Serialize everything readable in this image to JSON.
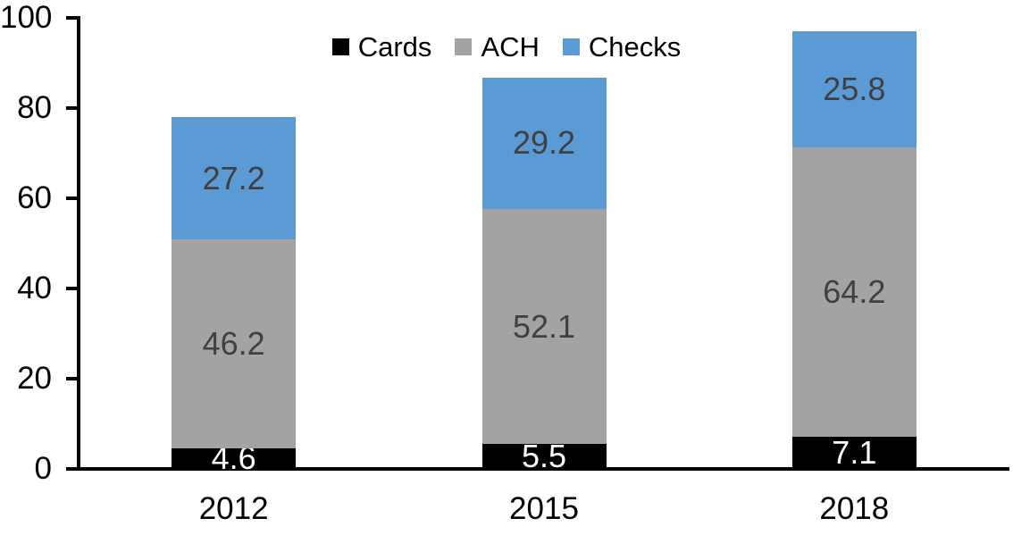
{
  "chart_data": {
    "type": "bar",
    "stacked": true,
    "title": "",
    "xlabel": "",
    "ylabel": "",
    "categories": [
      "2012",
      "2015",
      "2018"
    ],
    "series": [
      {
        "name": "Cards",
        "color": "#000000",
        "label_color": "#FFFFFF",
        "values": [
          4.6,
          5.5,
          7.1
        ]
      },
      {
        "name": "ACH",
        "color": "#A3A3A3",
        "label_color": "#404040",
        "values": [
          46.2,
          52.1,
          64.2
        ]
      },
      {
        "name": "Checks",
        "color": "#5B9BD5",
        "label_color": "#404040",
        "values": [
          27.2,
          29.2,
          25.8
        ]
      }
    ],
    "totals": [
      78.0,
      86.8,
      97.1
    ],
    "ylim": [
      0,
      100
    ],
    "yticks": [
      0,
      20,
      40,
      60,
      80,
      100
    ],
    "grid": false,
    "data_labels": true,
    "legend_position": "top-center",
    "axis_color": "#000000",
    "background_color": "#FFFFFF"
  }
}
